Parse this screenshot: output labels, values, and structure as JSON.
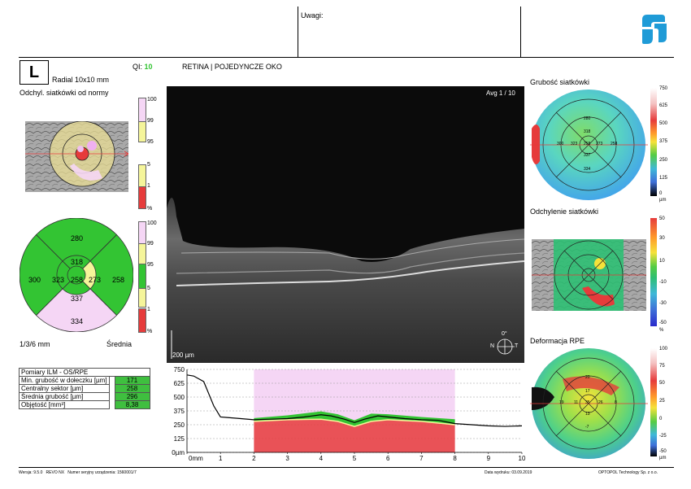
{
  "header": {
    "notes_label": "Uwagi:"
  },
  "exam": {
    "eye": "L",
    "scan": "Radial  10x10 mm",
    "qi_label": "QI:",
    "qi_value": "10",
    "title": "RETINA | POJEDYNCZE OKO",
    "deviation_title": "Odchyl. siatkówki od normy",
    "avg": "Avg 1 / 10",
    "scale_bar": "200 µm",
    "orient_deg": "0°",
    "orient_n": "N",
    "orient_t": "T"
  },
  "percentile_scale": {
    "labels": [
      "100",
      "99",
      "95",
      "5",
      "1",
      "%"
    ]
  },
  "sector_map": {
    "top": "280",
    "inner_top": "318",
    "left": "300",
    "inner_left": "323",
    "center": "258",
    "inner_right": "273",
    "right": "258",
    "inner_bottom": "337",
    "bottom": "334",
    "ring_label": "1/3/6 mm",
    "mode_label": "Średnia"
  },
  "measurements": {
    "title": "Pomiary ILM - OS/RPE",
    "rows": [
      {
        "label": "Min. grubość w dołeczku [µm]",
        "value": "171"
      },
      {
        "label": "Centralny sektor [µm]",
        "value": "258"
      },
      {
        "label": "Średnia grubość [µm]",
        "value": "296"
      },
      {
        "label": "Objętość [mm³]",
        "value": "8,38"
      }
    ]
  },
  "chart_data": {
    "type": "area",
    "ylabel": "µm",
    "xlabel": "mm",
    "y_ticks": [
      "750",
      "625",
      "500",
      "375",
      "250",
      "125",
      "0µm"
    ],
    "x_ticks": [
      "0mm",
      "1",
      "2",
      "3",
      "4",
      "5",
      "6",
      "7",
      "8",
      "9",
      "10"
    ],
    "xlim": [
      0,
      10
    ],
    "ylim": [
      0,
      750
    ],
    "highlight_range": [
      2,
      8
    ],
    "series": [
      {
        "values": [
          [
            0,
            700
          ],
          [
            0.2,
            690
          ],
          [
            0.5,
            640
          ],
          [
            0.8,
            420
          ],
          [
            1,
            320
          ],
          [
            1.2,
            315
          ],
          [
            1.5,
            308
          ],
          [
            2,
            295
          ],
          [
            2.5,
            300
          ],
          [
            3,
            305
          ],
          [
            3.5,
            320
          ],
          [
            4,
            340
          ],
          [
            4.3,
            330
          ],
          [
            4.7,
            300
          ],
          [
            5,
            270
          ],
          [
            5.3,
            300
          ],
          [
            5.7,
            330
          ],
          [
            6,
            320
          ],
          [
            6.5,
            305
          ],
          [
            7,
            295
          ],
          [
            7.5,
            290
          ],
          [
            8,
            260
          ],
          [
            8.5,
            250
          ],
          [
            9,
            240
          ],
          [
            9.5,
            235
          ],
          [
            10,
            240
          ]
        ]
      }
    ],
    "normal_band": {
      "upper": [
        [
          2,
          310
        ],
        [
          3,
          335
        ],
        [
          4,
          370
        ],
        [
          4.5,
          345
        ],
        [
          5,
          290
        ],
        [
          5.5,
          350
        ],
        [
          6,
          345
        ],
        [
          7,
          320
        ],
        [
          8,
          300
        ]
      ],
      "lower": [
        [
          2,
          280
        ],
        [
          3,
          295
        ],
        [
          4,
          300
        ],
        [
          4.5,
          280
        ],
        [
          5,
          235
        ],
        [
          5.5,
          280
        ],
        [
          6,
          295
        ],
        [
          7,
          280
        ],
        [
          8,
          250
        ]
      ]
    }
  },
  "right_panels": {
    "thickness": {
      "title": "Grubość siatkówki",
      "scale": [
        "750",
        "625",
        "500",
        "375",
        "250",
        "125",
        "0",
        "µm"
      ],
      "values": {
        "top": "280",
        "inner_top": "318",
        "left": "300",
        "inner_left": "323",
        "center": "258",
        "inner_right": "273",
        "right": "258",
        "inner_bottom": "337",
        "bottom": "334"
      }
    },
    "deviation": {
      "title": "Odchylenie siatkówki",
      "scale": [
        "50",
        "30",
        "10",
        "-10",
        "-30",
        "-50",
        "%"
      ]
    },
    "rpe": {
      "title": "Deformacja RPE",
      "scale": [
        "100",
        "75",
        "50",
        "25",
        "0",
        "-25",
        "-50",
        "µm"
      ],
      "values": {
        "top": "20",
        "inner_top": "17",
        "left": "19",
        "inner_left": "11",
        "center": "35",
        "inner_right": "26",
        "right": "8",
        "inner_bottom": "13",
        "bottom": "-7"
      }
    }
  },
  "footer": {
    "version": "Wersja: 9.5.0",
    "device": "REVO NX",
    "serial": "Numer seryjny urządzenia: 1560001/7",
    "print_date": "Data wydruku: 03.09.2019",
    "company": "OPTOPOL Technology Sp. z o.o."
  },
  "colors": {
    "green": "#33c433",
    "yellow": "#f5f59a",
    "red": "#e63b3b",
    "pink": "#f5d6f5",
    "brand": "#1f9bd7"
  }
}
